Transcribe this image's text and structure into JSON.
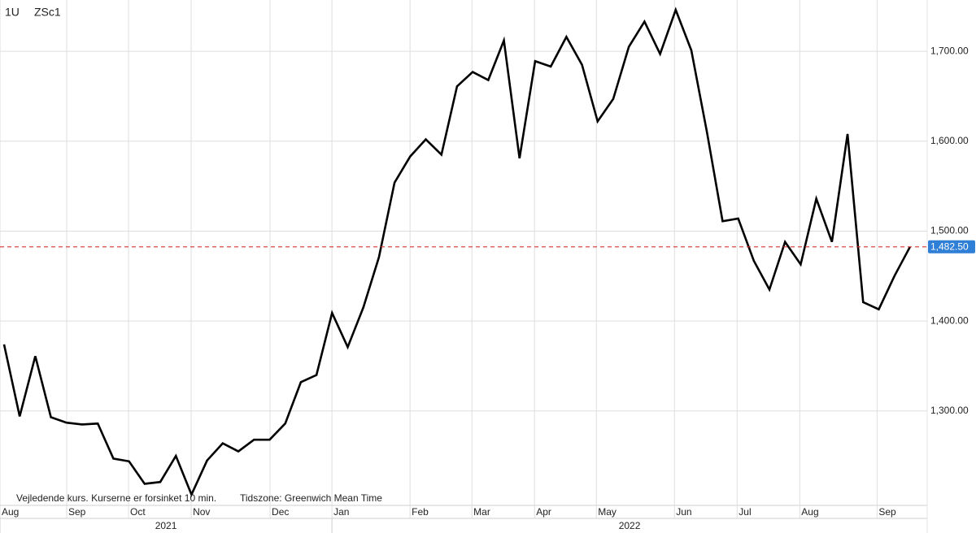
{
  "chart_data": {
    "type": "line",
    "period": "1U",
    "symbol": "ZSc1",
    "note": "Vejledende kurs. Kurserne er forsinket 10 min.",
    "timezone": "Tidszone: Greenwich Mean Time",
    "series": [
      {
        "name": "ZSc1",
        "color": "#000000",
        "values": [
          1374,
          1294,
          1361,
          1293,
          1287,
          1285,
          1286,
          1247,
          1244,
          1219,
          1221,
          1250,
          1207,
          1245,
          1264,
          1255,
          1268,
          1268,
          1286,
          1332,
          1340,
          1409,
          1371,
          1415,
          1471,
          1554,
          1583,
          1602,
          1585,
          1661,
          1677,
          1668,
          1712,
          1581,
          1689,
          1683,
          1716,
          1685,
          1622,
          1647,
          1705,
          1733,
          1697,
          1746,
          1701,
          1610,
          1511,
          1514,
          1467,
          1435,
          1488,
          1463,
          1536,
          1488,
          1608,
          1421,
          1413,
          1450,
          1482.5
        ]
      }
    ],
    "last": {
      "value": 1482.5,
      "label": "1,482.50",
      "color": "#d9342b",
      "box_color": "#2f7fd6"
    },
    "xlim": [
      -0.26,
      59.1
    ],
    "xticks": [
      {
        "value": -0.26,
        "label": "Aug"
      },
      {
        "value": 4.01,
        "label": "Sep"
      },
      {
        "value": 7.97,
        "label": "Oct"
      },
      {
        "value": 11.98,
        "label": "Nov"
      },
      {
        "value": 17.03,
        "label": "Dec"
      },
      {
        "value": 20.99,
        "label": "Jan"
      },
      {
        "value": 25.99,
        "label": "Feb"
      },
      {
        "value": 29.95,
        "label": "Mar"
      },
      {
        "value": 33.96,
        "label": "Apr"
      },
      {
        "value": 37.92,
        "label": "May"
      },
      {
        "value": 42.92,
        "label": "Jun"
      },
      {
        "value": 46.93,
        "label": "Jul"
      },
      {
        "value": 50.94,
        "label": "Aug"
      },
      {
        "value": 55.89,
        "label": "Sep"
      }
    ],
    "years": [
      {
        "label": "2021",
        "from": -0.26,
        "to": 20.99
      },
      {
        "label": "2022",
        "from": 20.99,
        "to": 59.1
      }
    ],
    "ylim": [
      1195,
      1757
    ],
    "yticks": [
      {
        "value": 1300,
        "label": "1,300.00"
      },
      {
        "value": 1400,
        "label": "1,400.00"
      },
      {
        "value": 1500,
        "label": "1,500.00"
      },
      {
        "value": 1600,
        "label": "1,600.00"
      },
      {
        "value": 1700,
        "label": "1,700.00"
      }
    ],
    "grid": true
  }
}
